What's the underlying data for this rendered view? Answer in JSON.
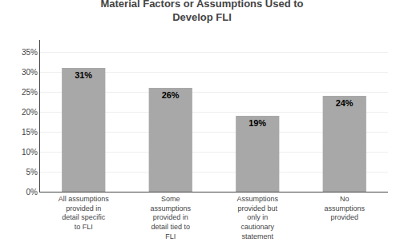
{
  "chart_data": {
    "type": "bar",
    "title": "Material Factors or Assumptions Used to\nDevelop FLI",
    "categories": [
      "All assumptions\nprovided in\ndetail specific\nto FLI",
      "Some\nassumptions\nprovided in\ndetail tied to\nFLI",
      "Assumptions\nprovided but\nonly in\ncautionary\nstatement",
      "No\nassumptions\nprovided"
    ],
    "values": [
      31,
      26,
      19,
      24
    ],
    "value_labels": [
      "31%",
      "26%",
      "19%",
      "24%"
    ],
    "data_labels": true,
    "color": "#a8a8a8",
    "ylim": [
      0,
      38
    ],
    "yticks": [
      {
        "value": 0,
        "label": "0%"
      },
      {
        "value": 5,
        "label": "5%"
      },
      {
        "value": 10,
        "label": "10%"
      },
      {
        "value": 15,
        "label": "15%"
      },
      {
        "value": 20,
        "label": "20%"
      },
      {
        "value": 25,
        "label": "25%"
      },
      {
        "value": 30,
        "label": "30%"
      },
      {
        "value": 35,
        "label": "35%"
      }
    ],
    "grid": true
  }
}
